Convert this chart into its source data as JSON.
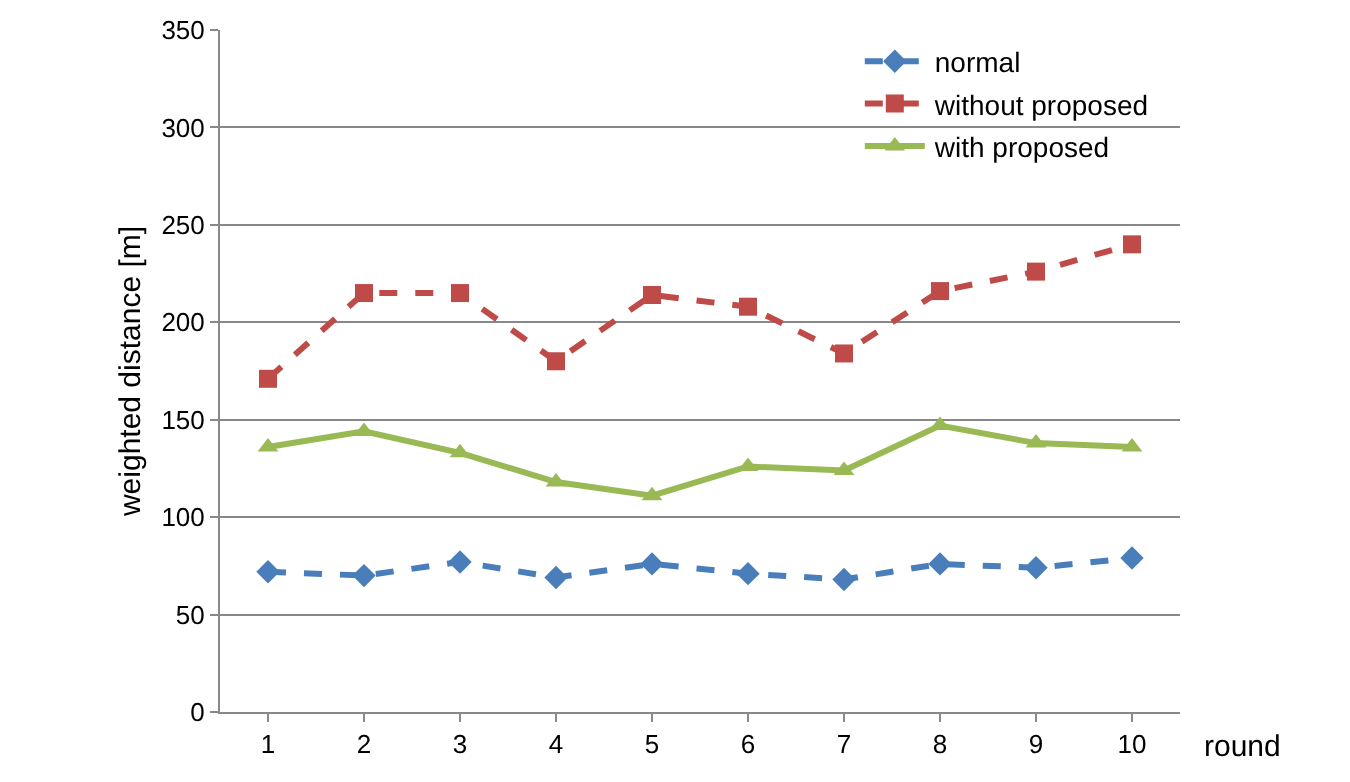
{
  "chart_data": {
    "type": "line",
    "xlabel": "round",
    "ylabel": "weighted distance [m]",
    "categories": [
      "1",
      "2",
      "3",
      "4",
      "5",
      "6",
      "7",
      "8",
      "9",
      "10"
    ],
    "series": [
      {
        "name": "normal",
        "color": "#4a7ebb",
        "marker": "diamond",
        "line_style": "dashed",
        "values": [
          72,
          70,
          77,
          69,
          76,
          71,
          68,
          76,
          74,
          79
        ]
      },
      {
        "name": "without proposed",
        "color": "#be4b48",
        "marker": "square",
        "line_style": "dashed",
        "values": [
          171,
          215,
          215,
          180,
          214,
          208,
          184,
          216,
          226,
          240
        ]
      },
      {
        "name": "with proposed",
        "color": "#98b954",
        "marker": "triangle",
        "line_style": "solid",
        "values": [
          136,
          144,
          133,
          118,
          111,
          126,
          124,
          147,
          138,
          136
        ]
      }
    ],
    "ylim": [
      0,
      350
    ],
    "yticks": [
      0,
      50,
      100,
      150,
      200,
      250,
      300,
      350
    ],
    "grid": "y",
    "legend": "top right"
  }
}
